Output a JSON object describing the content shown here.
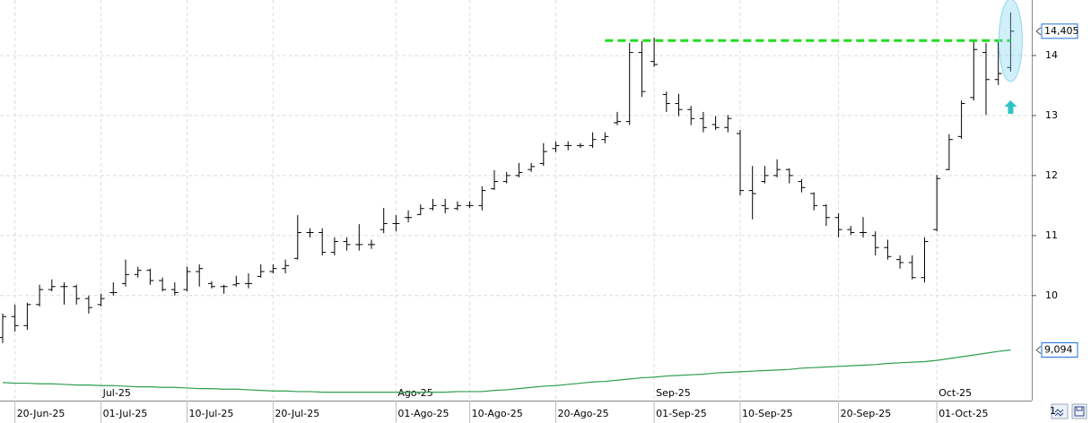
{
  "chart_data": {
    "type": "ohlc",
    "categories": [
      null,
      "20-Jun-25",
      null,
      null,
      null,
      null,
      null,
      null,
      "01-Jul-25",
      null,
      null,
      null,
      null,
      null,
      null,
      "10-Jul-25",
      null,
      null,
      null,
      null,
      null,
      null,
      "20-Jul-25",
      null,
      null,
      null,
      null,
      null,
      null,
      null,
      null,
      null,
      "01-Ago-25",
      null,
      null,
      null,
      null,
      null,
      "10-Ago-25",
      null,
      null,
      null,
      null,
      null,
      null,
      "20-Ago-25",
      null,
      null,
      null,
      null,
      null,
      null,
      null,
      "01-Sep-25",
      null,
      null,
      null,
      null,
      null,
      null,
      "10-Sep-25",
      null,
      null,
      null,
      null,
      null,
      null,
      null,
      "20-Sep-25",
      null,
      null,
      null,
      null,
      null,
      null,
      null,
      "01-Oct-25",
      null,
      null,
      null,
      null,
      null,
      null
    ],
    "months": [
      null,
      null,
      null,
      null,
      null,
      null,
      null,
      null,
      "Jul-25",
      null,
      null,
      null,
      null,
      null,
      null,
      null,
      null,
      null,
      null,
      null,
      null,
      null,
      null,
      null,
      null,
      null,
      null,
      null,
      null,
      null,
      null,
      null,
      "Ago-25",
      null,
      null,
      null,
      null,
      null,
      null,
      null,
      null,
      null,
      null,
      null,
      null,
      null,
      null,
      null,
      null,
      null,
      null,
      null,
      null,
      "Sep-25",
      null,
      null,
      null,
      null,
      null,
      null,
      null,
      null,
      null,
      null,
      null,
      null,
      null,
      null,
      null,
      null,
      null,
      null,
      null,
      null,
      null,
      null,
      "Oct-25",
      null,
      null,
      null,
      null,
      null,
      null
    ],
    "open": [
      9.3,
      9.65,
      9.5,
      9.85,
      10.1,
      10.15,
      10.15,
      9.95,
      9.85,
      10.05,
      10.2,
      10.35,
      10.42,
      10.25,
      10.1,
      10.1,
      10.4,
      10.2,
      10.15,
      10.18,
      10.2,
      10.32,
      10.4,
      10.45,
      10.62,
      11.05,
      11.05,
      10.72,
      10.9,
      10.85,
      10.85,
      11.1,
      11.2,
      11.3,
      11.35,
      11.45,
      11.5,
      11.45,
      11.5,
      11.5,
      11.78,
      11.9,
      12.0,
      12.1,
      12.2,
      12.45,
      12.5,
      12.5,
      12.5,
      12.6,
      12.88,
      12.9,
      14.05,
      13.9,
      13.35,
      13.2,
      13.1,
      12.95,
      12.85,
      12.8,
      12.7,
      11.75,
      11.9,
      12.0,
      12.1,
      11.9,
      11.7,
      11.5,
      11.3,
      11.1,
      11.05,
      11.0,
      10.8,
      10.6,
      10.55,
      10.3,
      11.1,
      12.1,
      12.65,
      13.3,
      14.05,
      13.6,
      13.8
    ],
    "high": [
      9.7,
      9.85,
      9.88,
      10.18,
      10.27,
      10.22,
      10.18,
      10.0,
      10.03,
      10.22,
      10.6,
      10.48,
      10.45,
      10.3,
      10.22,
      10.48,
      10.52,
      10.24,
      10.18,
      10.33,
      10.37,
      10.52,
      10.52,
      10.6,
      11.34,
      11.12,
      11.12,
      10.97,
      10.97,
      11.19,
      10.93,
      11.46,
      11.34,
      11.42,
      11.52,
      11.61,
      11.61,
      11.57,
      11.57,
      11.82,
      12.09,
      12.06,
      12.21,
      12.21,
      12.54,
      12.57,
      12.57,
      12.54,
      12.72,
      12.72,
      13.06,
      14.21,
      14.24,
      14.3,
      13.4,
      13.36,
      13.16,
      13.06,
      12.99,
      13.01,
      12.76,
      12.16,
      12.16,
      12.27,
      12.12,
      11.94,
      11.72,
      11.52,
      11.37,
      11.16,
      11.31,
      11.07,
      10.93,
      10.67,
      10.67,
      10.97,
      12.01,
      12.69,
      13.25,
      14.25,
      14.21,
      14.25,
      14.72
    ],
    "low": [
      9.21,
      9.4,
      9.43,
      9.82,
      10.07,
      9.85,
      9.85,
      9.7,
      9.82,
      10.0,
      10.15,
      10.3,
      10.18,
      10.07,
      10.0,
      10.07,
      10.15,
      10.12,
      10.03,
      10.15,
      10.12,
      10.3,
      10.37,
      10.37,
      10.6,
      10.97,
      10.67,
      10.67,
      10.75,
      10.75,
      10.78,
      11.04,
      11.07,
      11.22,
      11.34,
      11.42,
      11.37,
      11.42,
      11.46,
      11.42,
      11.76,
      11.87,
      11.97,
      12.06,
      12.16,
      12.39,
      12.42,
      12.46,
      12.46,
      12.54,
      12.84,
      12.84,
      13.31,
      13.81,
      13.06,
      12.99,
      12.84,
      12.72,
      12.76,
      12.72,
      11.67,
      11.27,
      11.87,
      11.97,
      11.87,
      11.72,
      11.42,
      11.16,
      10.97,
      11.01,
      10.97,
      10.67,
      10.6,
      10.45,
      10.27,
      10.22,
      11.07,
      12.09,
      12.61,
      13.25,
      13.01,
      13.51,
      13.73
    ],
    "close": [
      9.65,
      9.5,
      9.85,
      10.1,
      10.15,
      10.15,
      9.95,
      9.8,
      9.95,
      10.05,
      10.35,
      10.42,
      10.25,
      10.1,
      10.05,
      10.4,
      10.45,
      10.15,
      10.15,
      10.2,
      10.2,
      10.4,
      10.45,
      10.5,
      11.05,
      11.05,
      10.72,
      10.9,
      10.85,
      10.85,
      10.85,
      11.2,
      11.2,
      11.3,
      11.45,
      11.5,
      11.45,
      11.5,
      11.5,
      11.75,
      11.9,
      12.0,
      12.05,
      12.15,
      12.4,
      12.5,
      12.5,
      12.5,
      12.6,
      12.65,
      12.9,
      14.05,
      13.4,
      13.85,
      13.2,
      13.1,
      12.95,
      12.8,
      12.8,
      12.95,
      11.75,
      11.7,
      12.0,
      12.1,
      12.0,
      11.8,
      11.5,
      11.3,
      11.1,
      11.05,
      11.05,
      10.8,
      10.65,
      10.55,
      10.3,
      10.9,
      11.95,
      12.6,
      13.2,
      14.1,
      13.6,
      13.7,
      14.405
    ],
    "bar_color": "#000000",
    "moving_average": {
      "color": "#2e9e4f",
      "values": [
        8.55,
        8.54,
        8.54,
        8.53,
        8.53,
        8.52,
        8.51,
        8.51,
        8.5,
        8.5,
        8.49,
        8.48,
        8.48,
        8.47,
        8.47,
        8.46,
        8.45,
        8.45,
        8.44,
        8.44,
        8.43,
        8.42,
        8.41,
        8.41,
        8.4,
        8.4,
        8.39,
        8.39,
        8.39,
        8.39,
        8.39,
        8.39,
        8.39,
        8.39,
        8.39,
        8.39,
        8.39,
        8.4,
        8.4,
        8.4,
        8.42,
        8.43,
        8.45,
        8.47,
        8.49,
        8.5,
        8.52,
        8.54,
        8.56,
        8.57,
        8.59,
        8.61,
        8.63,
        8.64,
        8.66,
        8.67,
        8.68,
        8.69,
        8.71,
        8.72,
        8.73,
        8.74,
        8.75,
        8.76,
        8.77,
        8.79,
        8.8,
        8.81,
        8.82,
        8.83,
        8.84,
        8.85,
        8.87,
        8.88,
        8.89,
        8.9,
        8.92,
        8.95,
        8.98,
        9.01,
        9.04,
        9.07,
        9.094
      ]
    },
    "ylim": [
      8.25,
      14.925
    ],
    "yticks": [
      10,
      11,
      12,
      13,
      14
    ],
    "grid": true,
    "price_markers": [
      {
        "value": 14.405,
        "label": "14,405"
      },
      {
        "value": 9.094,
        "label": "9,094"
      }
    ],
    "marker_color": "#1e6fd9",
    "resistance": {
      "value": 14.25,
      "start_index": 49,
      "color": "#22dd22"
    },
    "scale_label": "1"
  }
}
